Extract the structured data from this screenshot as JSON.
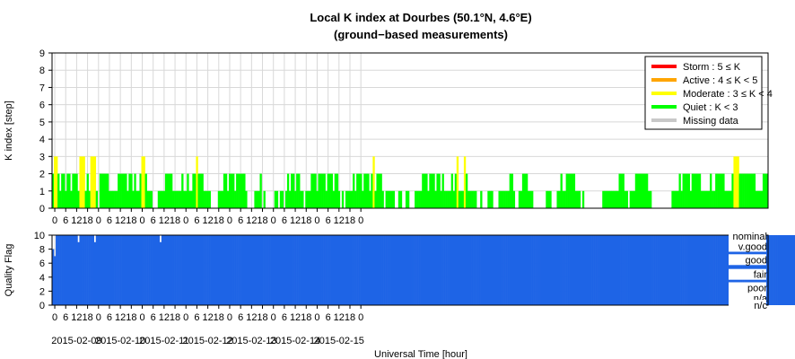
{
  "title_line1": "Local K index at Dourbes (50.1°N, 4.6°E)",
  "title_line2": "(ground−based measurements)",
  "xlabel": "Universal Time [hour]",
  "colors": {
    "storm": "#ff0000",
    "active": "#ffa500",
    "moderate": "#ffff00",
    "quiet": "#00ff00",
    "missing": "#c8c8c8",
    "quality": "#1e64e6"
  },
  "chart_data": [
    {
      "type": "bar",
      "name": "k-index",
      "ylabel": "K index [step]",
      "ylim": [
        0,
        9
      ],
      "yticks": [
        0,
        1,
        2,
        3,
        4,
        5,
        6,
        7,
        8,
        9
      ],
      "grid": true,
      "legend_position": "top-right",
      "legend": [
        {
          "key": "storm",
          "label": "Storm : 5 ≤ K"
        },
        {
          "key": "active",
          "label": "Active : 4 ≤ K < 5"
        },
        {
          "key": "moderate",
          "label": "Moderate : 3 ≤ K < 4"
        },
        {
          "key": "quiet",
          "label": "Quiet : K < 3"
        },
        {
          "key": "missing",
          "label": "Missing data"
        }
      ],
      "x_start": "2015-02-08 22:30 UT",
      "x_end": "2015-02-16 00:00 UT",
      "bar_width_hours": 1,
      "hour_ticks": [
        "0",
        "6",
        "12",
        "18",
        "0",
        "6",
        "12",
        "18",
        "0",
        "6",
        "12",
        "18",
        "0",
        "6",
        "12",
        "18",
        "0",
        "6",
        "12",
        "18",
        "0",
        "6",
        "12",
        "18",
        "0",
        "6",
        "12",
        "18",
        "0"
      ],
      "date_labels": [
        "2015-02-09",
        "2015-02-10",
        "2015-02-11",
        "2015-02-12",
        "2015-02-13",
        "2015-02-14",
        "2015-02-15"
      ],
      "values": [
        2,
        3,
        3,
        2,
        1,
        2,
        2,
        1,
        2,
        2,
        1,
        2,
        2,
        2,
        1,
        3,
        3,
        3,
        1,
        2,
        1,
        3,
        3,
        3,
        1,
        0,
        2,
        2,
        2,
        2,
        2,
        1,
        1,
        1,
        1,
        1,
        2,
        2,
        2,
        2,
        2,
        1,
        2,
        2,
        1,
        2,
        1,
        1,
        2,
        3,
        3,
        2,
        1,
        1,
        1,
        0,
        0,
        0,
        1,
        1,
        1,
        1,
        2,
        2,
        2,
        2,
        1,
        1,
        1,
        1,
        1,
        2,
        1,
        1,
        2,
        1,
        1,
        2,
        2,
        3,
        2,
        2,
        2,
        1,
        1,
        1,
        1,
        0,
        0,
        0,
        0,
        1,
        1,
        1,
        2,
        2,
        1,
        2,
        2,
        2,
        1,
        2,
        2,
        2,
        2,
        2,
        1,
        0,
        0,
        0,
        0,
        1,
        1,
        1,
        2,
        0,
        1,
        0,
        0,
        0,
        0,
        0,
        1,
        1,
        0,
        1,
        1,
        0,
        1,
        2,
        1,
        2,
        2,
        1,
        2,
        2,
        1,
        1,
        0,
        1,
        1,
        1,
        2,
        2,
        2,
        1,
        2,
        2,
        2,
        2,
        1,
        2,
        2,
        2,
        1,
        2,
        2,
        1,
        0,
        1,
        0,
        1,
        1,
        1,
        1,
        2,
        1,
        2,
        2,
        2,
        1,
        2,
        2,
        2,
        1,
        2,
        3,
        1,
        2,
        2,
        2,
        1,
        0,
        1,
        1,
        1,
        1,
        1,
        0,
        0,
        1,
        1,
        0,
        0,
        1,
        1,
        0,
        0,
        0,
        1,
        1,
        1,
        1,
        2,
        2,
        2,
        1,
        2,
        2,
        2,
        1,
        2,
        2,
        1,
        2,
        1,
        1,
        1,
        1,
        2,
        1,
        2,
        3,
        1,
        1,
        1,
        3,
        2,
        1,
        1,
        1,
        1,
        1,
        0,
        0,
        1,
        0,
        0,
        0,
        1,
        1,
        1,
        0,
        0,
        0,
        1,
        1,
        1,
        1,
        1,
        1,
        2,
        2,
        1,
        0,
        0,
        1,
        1,
        2,
        2,
        2,
        1,
        1,
        1,
        0,
        0,
        0,
        0,
        0,
        0,
        0,
        1,
        1,
        1,
        0,
        0,
        0,
        1,
        1,
        2,
        1,
        1,
        2,
        2,
        2,
        2,
        2,
        1,
        1,
        1,
        0,
        1,
        0,
        0,
        0,
        0,
        0,
        0,
        0,
        0,
        0,
        0,
        1,
        1,
        1,
        1,
        1,
        1,
        1,
        1,
        1,
        2,
        2,
        2,
        1,
        1,
        0,
        1,
        1,
        1,
        2,
        2,
        2,
        2,
        2,
        2,
        2,
        1,
        1,
        0,
        0,
        0,
        0,
        0,
        0,
        0,
        0,
        0,
        0,
        0,
        1,
        1,
        1,
        1,
        2,
        1,
        2,
        2,
        2,
        2,
        1,
        2,
        2,
        2,
        2,
        2,
        1,
        1,
        1,
        1,
        1,
        2,
        1,
        1,
        2,
        2,
        2,
        2,
        2,
        1,
        1,
        1,
        1,
        2,
        3,
        3,
        3,
        2,
        2,
        2,
        2,
        2,
        2,
        2,
        2,
        2,
        1,
        1,
        1,
        1,
        2,
        2,
        2
      ]
    },
    {
      "type": "bar",
      "name": "quality-flag",
      "ylabel": "Quality Flag",
      "ylim": [
        0,
        10
      ],
      "yticks": [
        0,
        2,
        4,
        6,
        8,
        10
      ],
      "grid": true,
      "level_labels": [
        "nominal",
        "v.good",
        "good",
        "fair",
        "poor",
        "n/a",
        "n/c"
      ],
      "hour_ticks": [
        "0",
        "6",
        "12",
        "18",
        "0",
        "6",
        "12",
        "18",
        "0",
        "6",
        "12",
        "18",
        "0",
        "6",
        "12",
        "18",
        "0",
        "6",
        "12",
        "18",
        "0",
        "6",
        "12",
        "18",
        "0",
        "6",
        "12",
        "18",
        "0"
      ],
      "date_labels": [
        "2015-02-09",
        "2015-02-10",
        "2015-02-11",
        "2015-02-12",
        "2015-02-13",
        "2015-02-14",
        "2015-02-15"
      ],
      "values": [
        8,
        7,
        10,
        10,
        10,
        10,
        10,
        10,
        10,
        10,
        10,
        10,
        10,
        10,
        9,
        10,
        10,
        10,
        10,
        10,
        10,
        10,
        10,
        9,
        10,
        10,
        10,
        10,
        10,
        10,
        10,
        10,
        10,
        10,
        10,
        10,
        10,
        10,
        10,
        10,
        10,
        10,
        10,
        10,
        10,
        10,
        10,
        10,
        10,
        10,
        10,
        10,
        10,
        10,
        10,
        10,
        10,
        10,
        10,
        9,
        10,
        10,
        10,
        10,
        10,
        10,
        10,
        10,
        10,
        10,
        10,
        10,
        10,
        10,
        10,
        10,
        10,
        10,
        10,
        10,
        10,
        10,
        10,
        10,
        10,
        10,
        10,
        10,
        10,
        10,
        10,
        10,
        10,
        10,
        10,
        10,
        10,
        10,
        10,
        10,
        10,
        10,
        10,
        10,
        10,
        10,
        10,
        10,
        10,
        10,
        10,
        10,
        10,
        10,
        10,
        10,
        10,
        10,
        10,
        10,
        10,
        10,
        10,
        10,
        10,
        10,
        10,
        10,
        10,
        10,
        10,
        10,
        10,
        10,
        10,
        10,
        10,
        10,
        10,
        10,
        10,
        10,
        10,
        10,
        10,
        10,
        10,
        10,
        10,
        10,
        10,
        10,
        10,
        10,
        10,
        10,
        10,
        10,
        10,
        10,
        10,
        10,
        10,
        10,
        10,
        10,
        10,
        10,
        10,
        10,
        10,
        10,
        10,
        10,
        10,
        10,
        10,
        10,
        10,
        10,
        10,
        10,
        10,
        10,
        10,
        10,
        10,
        10,
        10,
        10,
        10,
        10,
        10,
        10,
        10,
        10,
        10,
        10,
        10,
        10,
        10,
        10,
        10,
        10,
        10,
        10,
        10,
        10,
        10,
        10,
        10,
        10,
        10,
        10,
        10,
        10,
        10,
        10,
        10,
        10,
        10,
        10,
        10,
        10,
        10,
        10,
        10,
        10,
        10,
        10,
        10,
        10,
        10,
        10,
        10,
        10,
        10,
        10,
        10,
        10,
        10,
        10,
        10,
        10,
        10,
        10,
        10,
        10,
        10,
        10,
        10,
        10,
        10,
        10,
        10,
        10,
        10,
        10,
        10,
        10,
        10,
        10,
        10,
        10,
        10,
        10,
        10,
        10,
        10,
        10,
        10,
        10,
        10,
        10,
        10,
        10,
        10,
        10,
        10,
        10,
        10,
        10,
        10,
        10,
        10,
        10,
        10,
        10,
        10,
        10,
        10,
        10,
        10,
        10,
        10,
        10,
        10,
        10,
        10,
        10,
        10,
        10,
        10,
        10,
        10,
        10,
        10,
        10,
        10,
        10,
        10,
        10,
        10,
        10,
        10,
        10,
        10,
        10,
        10,
        10,
        10,
        10,
        10,
        10,
        10,
        10,
        10,
        10,
        10,
        10,
        10,
        10,
        10,
        10,
        10,
        10,
        10,
        10,
        10,
        10,
        10,
        10,
        10,
        10,
        10,
        10,
        10,
        10,
        10,
        10,
        10,
        10,
        10,
        10,
        10,
        10,
        10,
        10,
        10,
        10,
        10,
        10,
        10,
        10,
        10,
        10,
        10,
        10,
        10,
        10,
        10,
        10,
        10,
        10,
        10,
        10,
        10,
        10,
        10,
        10,
        10,
        10,
        10,
        10,
        10,
        10,
        10,
        10,
        10,
        10,
        10,
        10,
        10,
        10,
        10,
        10,
        10,
        10,
        10,
        10,
        10,
        10,
        10,
        10,
        10,
        10,
        10,
        10,
        10,
        10,
        10,
        10,
        10,
        10,
        10,
        10,
        10,
        10,
        10,
        10,
        10,
        10,
        10,
        10,
        10,
        10,
        10,
        10,
        10
      ]
    }
  ]
}
